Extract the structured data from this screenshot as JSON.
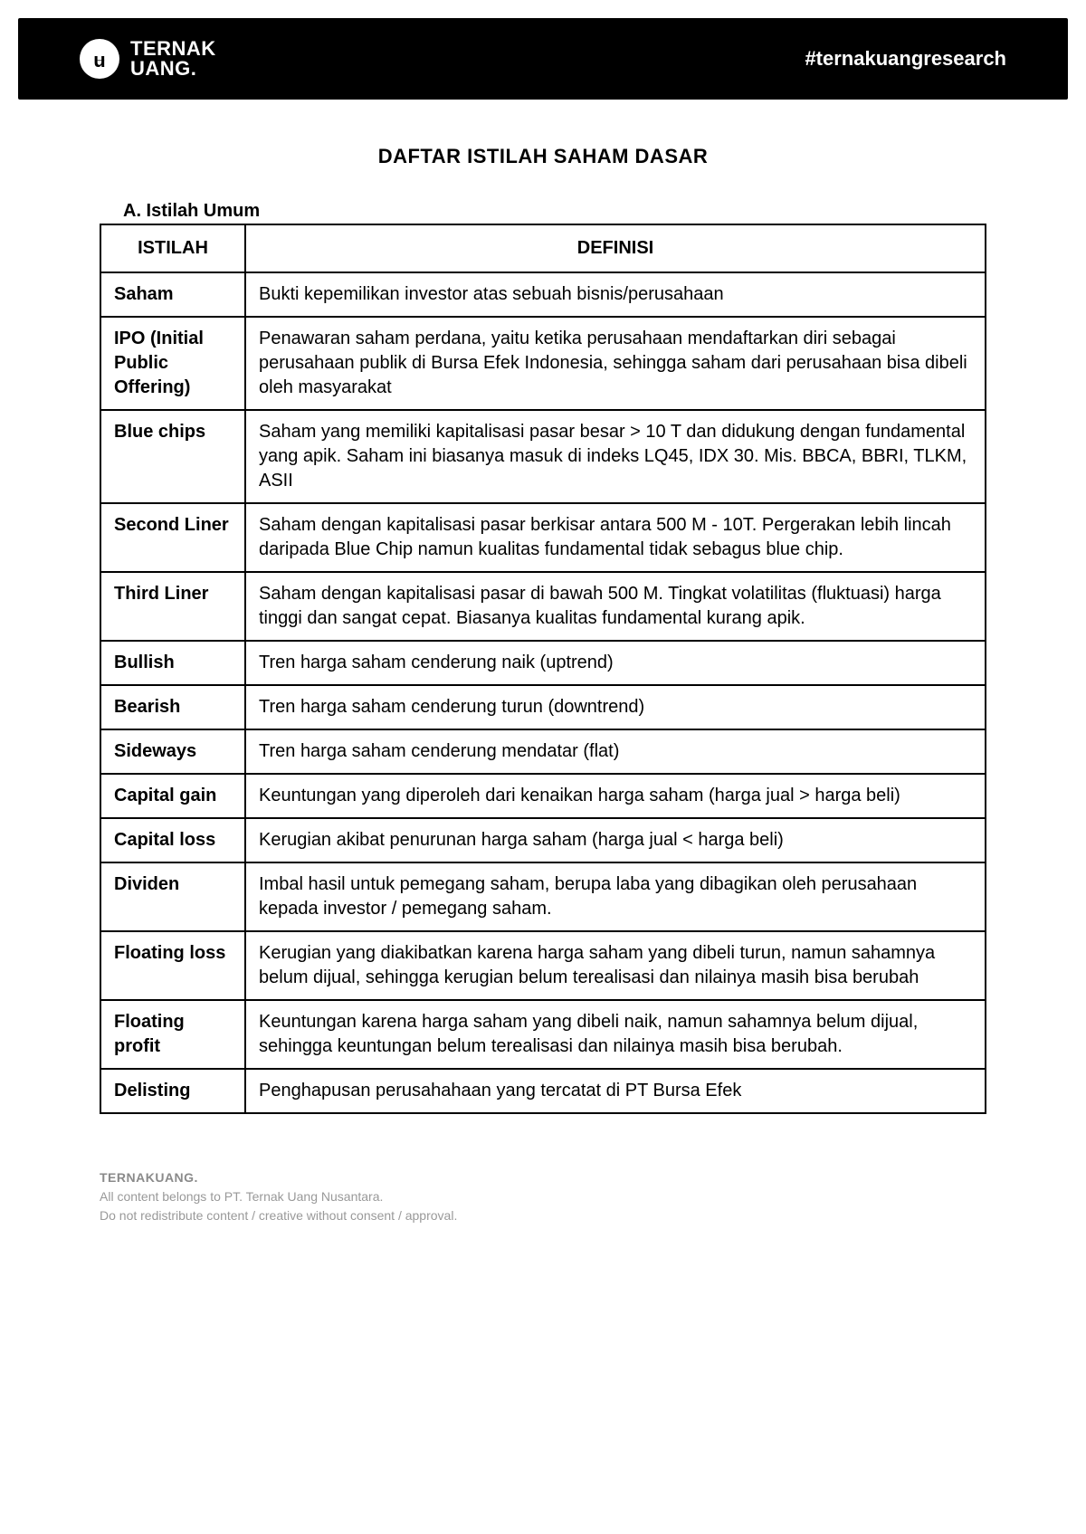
{
  "header": {
    "logo_line1": "TERNAK",
    "logo_line2": "UANG.",
    "hashtag": "#ternakuangresearch"
  },
  "page_title": "DAFTAR ISTILAH SAHAM DASAR",
  "section_heading": "A.  Istilah Umum",
  "table": {
    "columns": [
      "ISTILAH",
      "DEFINISI"
    ],
    "col_widths": [
      "160px",
      "auto"
    ],
    "rows": [
      {
        "term": "Saham",
        "definition": "Bukti kepemilikan investor atas sebuah bisnis/perusahaan"
      },
      {
        "term": "IPO (Initial Public Offering)",
        "definition": "Penawaran saham perdana, yaitu ketika perusahaan mendaftarkan diri sebagai perusahaan publik di Bursa Efek Indonesia, sehingga saham dari perusahaan bisa dibeli oleh masyarakat"
      },
      {
        "term": "Blue chips",
        "definition": "Saham yang memiliki kapitalisasi pasar  besar > 10 T dan didukung dengan fundamental yang apik. Saham ini biasanya masuk di indeks LQ45, IDX 30. Mis. BBCA, BBRI, TLKM, ASII"
      },
      {
        "term": "Second Liner",
        "definition": "Saham dengan kapitalisasi pasar berkisar antara 500 M - 10T. Pergerakan lebih lincah daripada Blue Chip namun kualitas fundamental tidak sebagus blue chip."
      },
      {
        "term": "Third Liner",
        "definition": "Saham dengan kapitalisasi pasar di bawah 500 M. Tingkat volatilitas (fluktuasi) harga tinggi dan sangat cepat. Biasanya kualitas fundamental kurang apik."
      },
      {
        "term": "Bullish",
        "definition": "Tren harga saham cenderung naik (uptrend)"
      },
      {
        "term": "Bearish",
        "definition": "Tren harga saham cenderung turun (downtrend)"
      },
      {
        "term": "Sideways",
        "definition": "Tren harga saham cenderung mendatar (flat)"
      },
      {
        "term": "Capital gain",
        "definition": "Keuntungan yang diperoleh dari kenaikan harga saham (harga jual > harga beli)"
      },
      {
        "term": "Capital loss",
        "definition": "Kerugian akibat penurunan harga saham (harga jual < harga beli)"
      },
      {
        "term": "Dividen",
        "definition": "Imbal hasil untuk pemegang saham, berupa laba yang dibagikan oleh perusahaan kepada investor / pemegang saham."
      },
      {
        "term": "Floating loss",
        "definition": "Kerugian yang diakibatkan karena harga saham yang dibeli turun, namun sahamnya belum dijual, sehingga kerugian belum terealisasi dan nilainya masih bisa berubah"
      },
      {
        "term": "Floating profit",
        "definition": "Keuntungan karena harga saham yang dibeli naik, namun sahamnya belum dijual, sehingga keuntungan belum terealisasi dan nilainya masih bisa berubah."
      },
      {
        "term": "Delisting",
        "definition": "Penghapusan perusahahaan yang tercatat di PT Bursa Efek"
      }
    ]
  },
  "footer": {
    "brand": "TERNAKUANG.",
    "line1": "All content belongs to PT. Ternak Uang Nusantara.",
    "line2": "Do not redistribute content / creative without consent / approval."
  },
  "styling": {
    "header_bg": "#000000",
    "header_text": "#ffffff",
    "page_bg": "#ffffff",
    "text_color": "#000000",
    "footer_text": "#999999",
    "border_color": "#000000",
    "title_fontsize": 22,
    "body_fontsize": 20,
    "footer_fontsize": 14
  }
}
